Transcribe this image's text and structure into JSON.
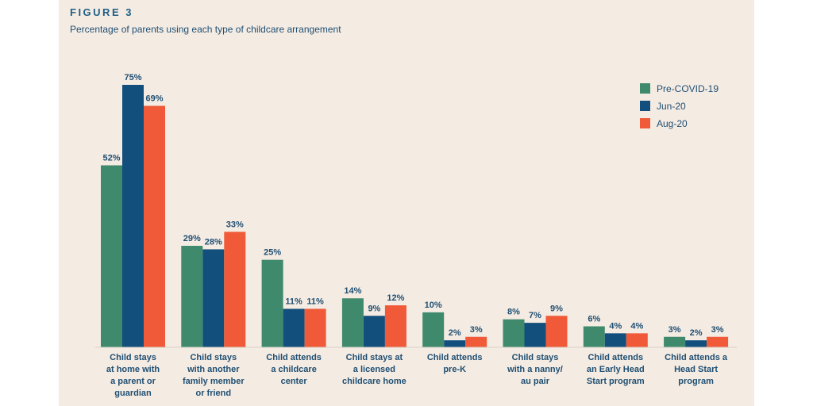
{
  "figure_label": "FIGURE 3",
  "chart_data": {
    "type": "bar",
    "title": "Percentage of parents using each type of childcare arrangement",
    "categories": [
      [
        "Child stays",
        "at home with",
        "a parent or",
        "guardian"
      ],
      [
        "Child stays",
        "with another",
        "family member",
        "or friend"
      ],
      [
        "Child attends",
        "a childcare",
        "center"
      ],
      [
        "Child stays at",
        "a licensed",
        "childcare home"
      ],
      [
        "Child attends",
        "pre-K"
      ],
      [
        "Child stays",
        "with a nanny/",
        "au pair"
      ],
      [
        "Child attends",
        "an Early Head",
        "Start program"
      ],
      [
        "Child attends a",
        "Head Start",
        "program"
      ]
    ],
    "series": [
      {
        "name": "Pre-COVID-19",
        "color": "#3f8a6d",
        "values": [
          52,
          29,
          25,
          14,
          10,
          8,
          6,
          3
        ]
      },
      {
        "name": "Jun-20",
        "color": "#124f7c",
        "values": [
          75,
          28,
          11,
          9,
          2,
          7,
          4,
          2
        ]
      },
      {
        "name": "Aug-20",
        "color": "#f05a38",
        "values": [
          69,
          33,
          11,
          12,
          3,
          9,
          4,
          3
        ]
      }
    ],
    "value_suffix": "%",
    "ylim": [
      0,
      75
    ],
    "legend_position": "top-right",
    "grid": false
  }
}
